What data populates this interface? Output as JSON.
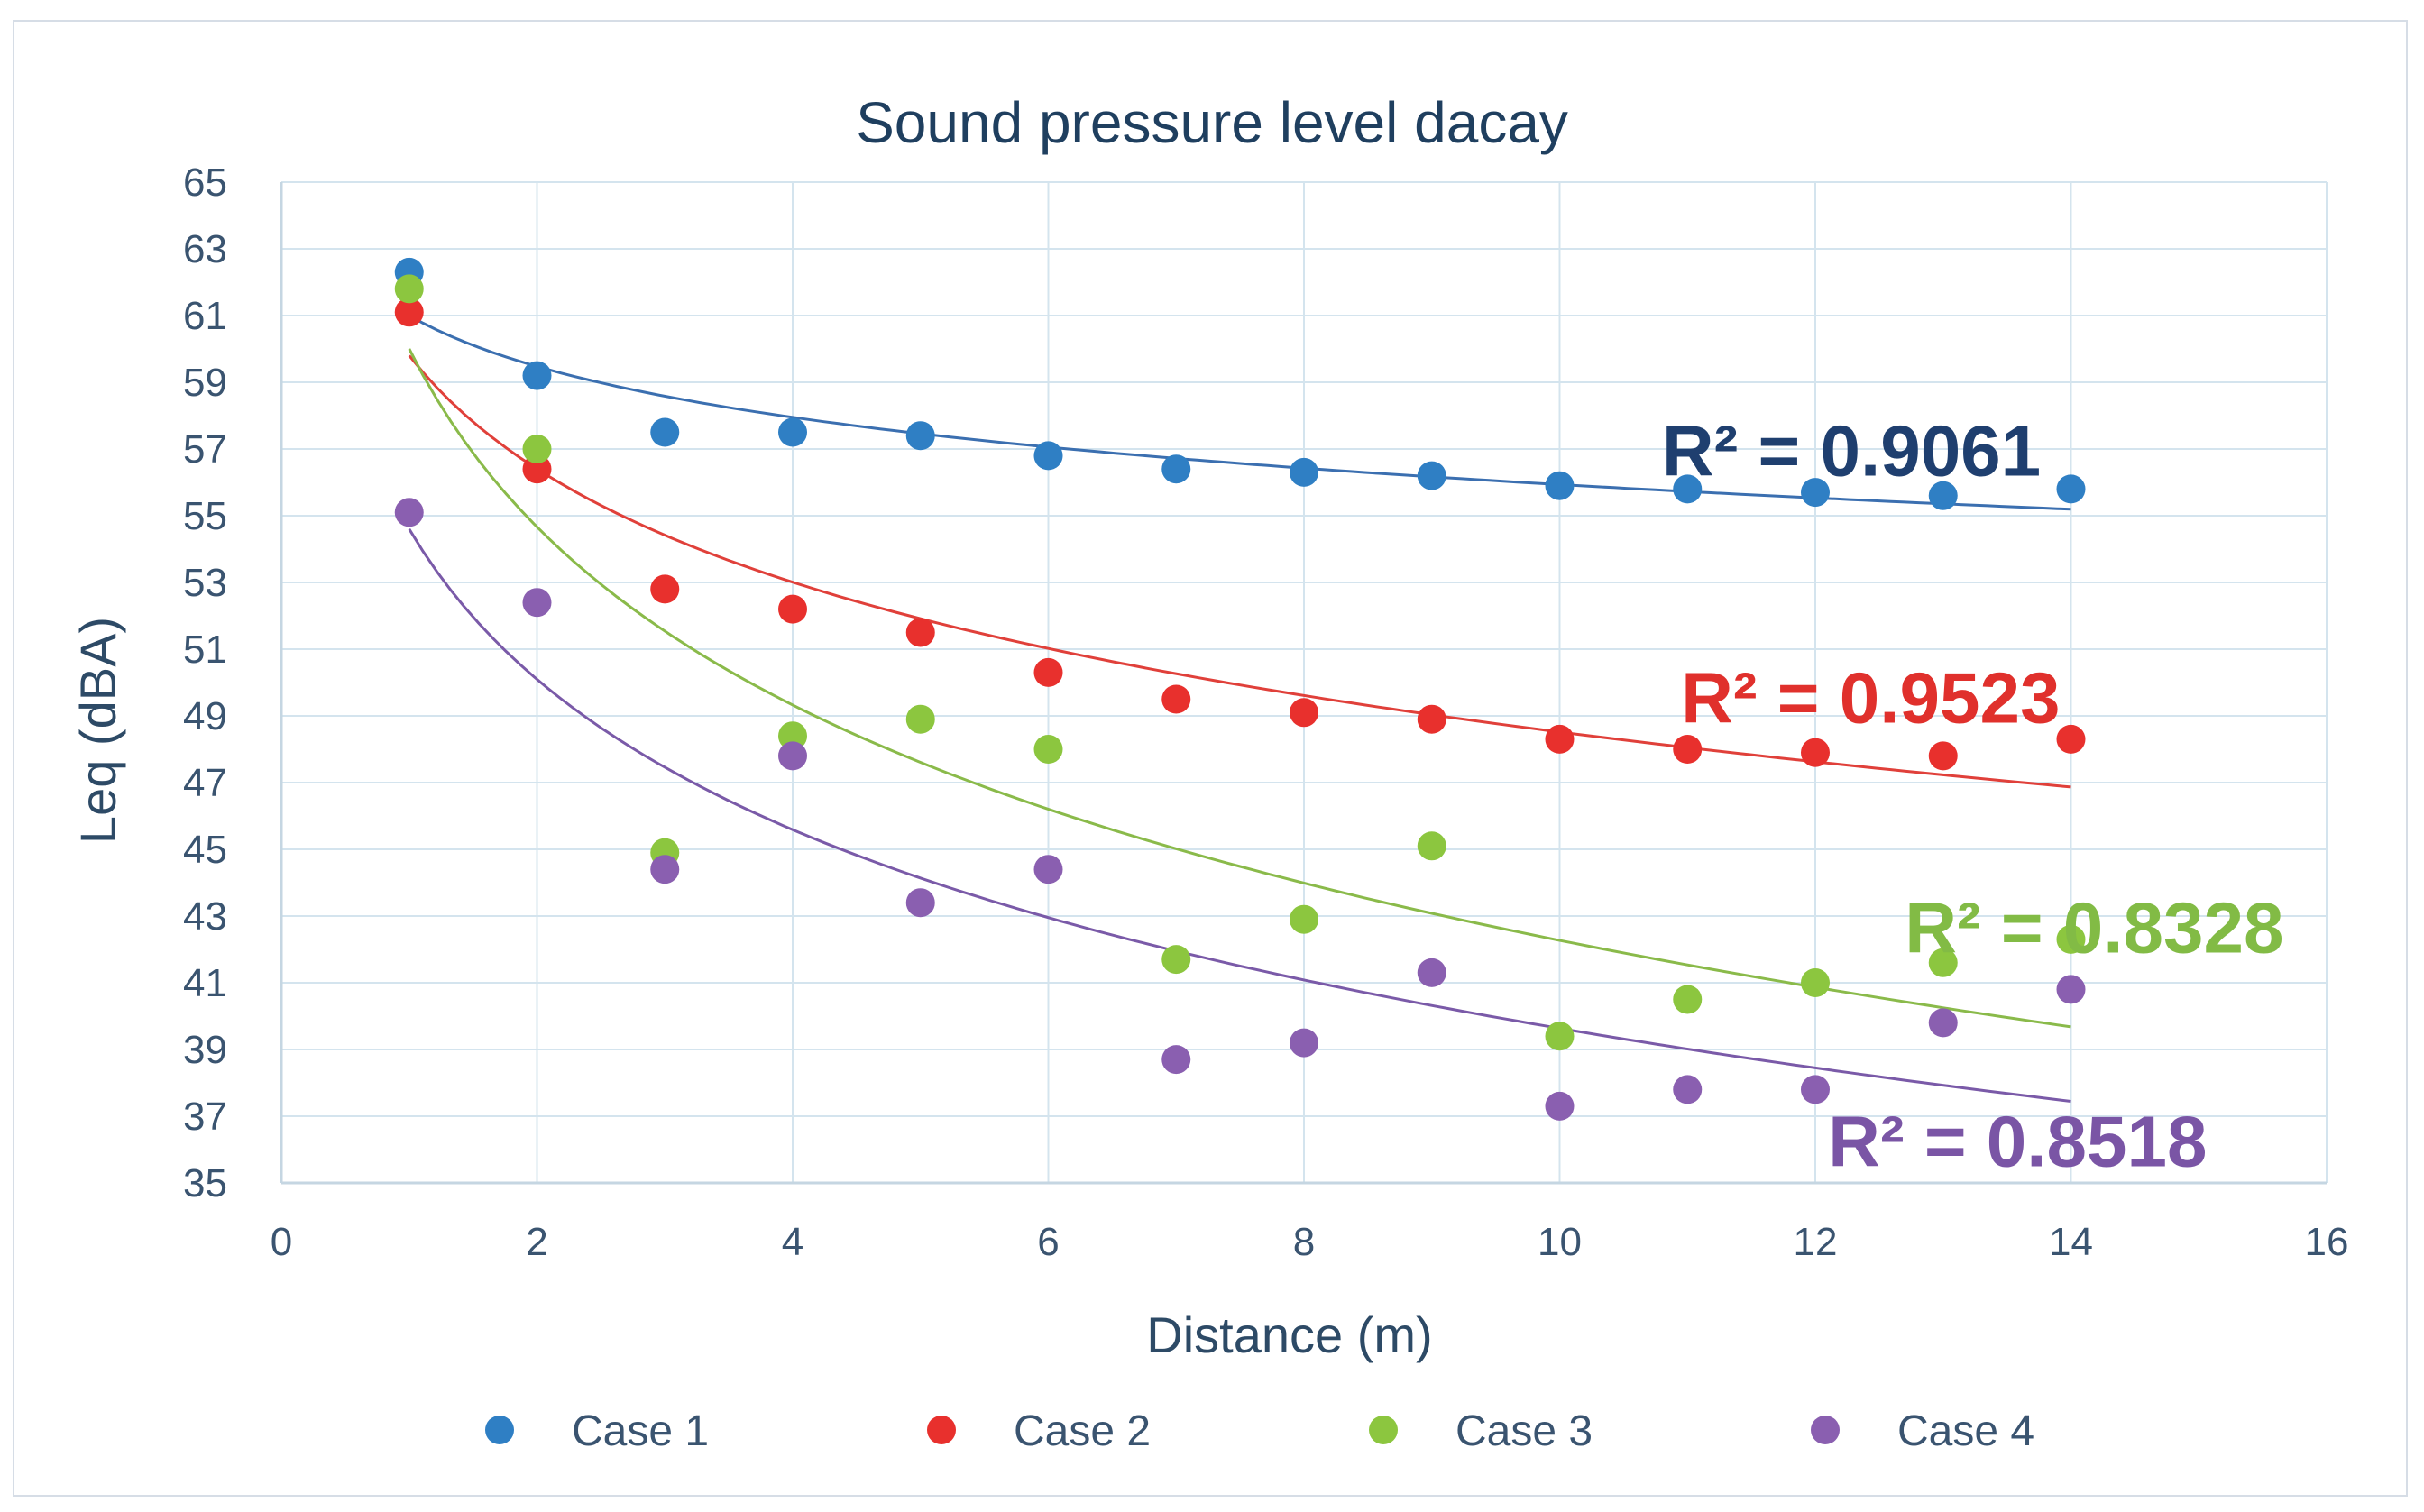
{
  "chart_data": {
    "type": "scatter",
    "title": "Sound pressure level dacay",
    "xlabel": "Distance  (m)",
    "ylabel": "Leq (dBA)",
    "xlim": [
      0,
      16
    ],
    "ylim": [
      35,
      65
    ],
    "xticks": [
      0,
      2,
      4,
      6,
      8,
      10,
      12,
      14,
      16
    ],
    "yticks": [
      35,
      37,
      39,
      41,
      43,
      45,
      47,
      49,
      51,
      53,
      55,
      57,
      59,
      61,
      63,
      65
    ],
    "grid": true,
    "legend_position": "bottom",
    "series": [
      {
        "name": "Case 1",
        "color": "#2f7fc4",
        "trend_color": "#3b6fb0",
        "x": [
          1,
          2,
          3,
          4,
          5,
          6,
          7,
          8,
          9,
          10,
          11,
          12,
          13,
          14
        ],
        "y": [
          62.3,
          59.2,
          57.5,
          57.5,
          57.4,
          56.8,
          56.4,
          56.3,
          56.2,
          55.9,
          55.8,
          55.7,
          55.6,
          55.8
        ],
        "trend": {
          "type": "log",
          "a": 61.0,
          "b": -2.2
        },
        "r2_label": "R² = 0.9061",
        "r2_color": "#1f3f6f",
        "r2_pos": [
          10.8,
          56.2
        ]
      },
      {
        "name": "Case 2",
        "color": "#e8302d",
        "trend_color": "#e0403a",
        "x": [
          1,
          2,
          3,
          4,
          5,
          6,
          7,
          8,
          9,
          10,
          11,
          12,
          13,
          14
        ],
        "y": [
          61.1,
          56.4,
          52.8,
          52.2,
          51.5,
          50.3,
          49.5,
          49.1,
          48.9,
          48.3,
          48.0,
          47.9,
          47.8,
          48.3
        ],
        "trend": {
          "type": "log",
          "a": 59.8,
          "b": -4.9
        },
        "r2_label": "R² = 0.9523",
        "r2_color": "#e0302c",
        "r2_pos": [
          10.95,
          48.8
        ]
      },
      {
        "name": "Case 3",
        "color": "#8cc63f",
        "trend_color": "#8aba4a",
        "x": [
          1,
          2,
          3,
          4,
          5,
          6,
          7,
          8,
          9,
          10,
          11,
          12,
          13,
          14
        ],
        "y": [
          61.8,
          57.0,
          44.9,
          48.4,
          48.9,
          48.0,
          41.7,
          42.9,
          45.1,
          39.4,
          40.5,
          41.0,
          41.6,
          42.3
        ],
        "trend": {
          "type": "log",
          "a": 60.0,
          "b": -7.7
        },
        "r2_label": "R² = 0.8328",
        "r2_color": "#82bb45",
        "r2_pos": [
          12.7,
          41.9
        ]
      },
      {
        "name": "Case 4",
        "color": "#8a5fb0",
        "trend_color": "#7a5aa8",
        "x": [
          1,
          2,
          3,
          4,
          5,
          6,
          7,
          8,
          9,
          10,
          11,
          12,
          13,
          14
        ],
        "y": [
          55.1,
          52.4,
          44.4,
          47.8,
          43.4,
          44.4,
          38.7,
          39.2,
          41.3,
          37.3,
          37.8,
          37.8,
          39.8,
          40.8
        ],
        "trend": {
          "type": "log",
          "a": 54.6,
          "b": -6.5
        },
        "r2_label": "R² = 0.8518",
        "r2_color": "#7a55a5",
        "r2_pos": [
          12.1,
          35.5
        ]
      }
    ]
  }
}
